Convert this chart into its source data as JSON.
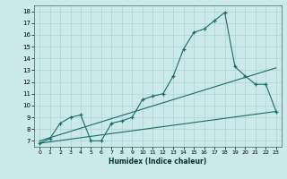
{
  "bg_color": "#cce9e9",
  "grid_color": "#aad4d4",
  "line_color": "#1a6b6b",
  "xlabel": "Humidex (Indice chaleur)",
  "xlim": [
    -0.5,
    23.5
  ],
  "ylim": [
    6.5,
    18.5
  ],
  "yticks": [
    7,
    8,
    9,
    10,
    11,
    12,
    13,
    14,
    15,
    16,
    17,
    18
  ],
  "xticks": [
    0,
    1,
    2,
    3,
    4,
    5,
    6,
    7,
    8,
    9,
    10,
    11,
    12,
    13,
    14,
    15,
    16,
    17,
    18,
    19,
    20,
    21,
    22,
    23
  ],
  "line1_x": [
    0,
    1,
    2,
    3,
    4,
    5,
    6,
    7,
    8,
    9,
    10,
    11,
    12,
    13,
    14,
    15,
    16,
    17,
    18,
    19,
    20,
    21,
    22,
    23
  ],
  "line1_y": [
    6.8,
    7.2,
    8.5,
    9.0,
    9.2,
    7.0,
    7.0,
    8.5,
    8.7,
    9.0,
    10.5,
    10.8,
    11.0,
    12.5,
    14.8,
    16.2,
    16.5,
    17.2,
    17.9,
    13.3,
    12.5,
    11.8,
    11.8,
    9.5
  ],
  "line2_x": [
    0,
    23
  ],
  "line2_y": [
    6.8,
    9.5
  ],
  "line3_x": [
    0,
    23
  ],
  "line3_y": [
    7.0,
    13.2
  ]
}
